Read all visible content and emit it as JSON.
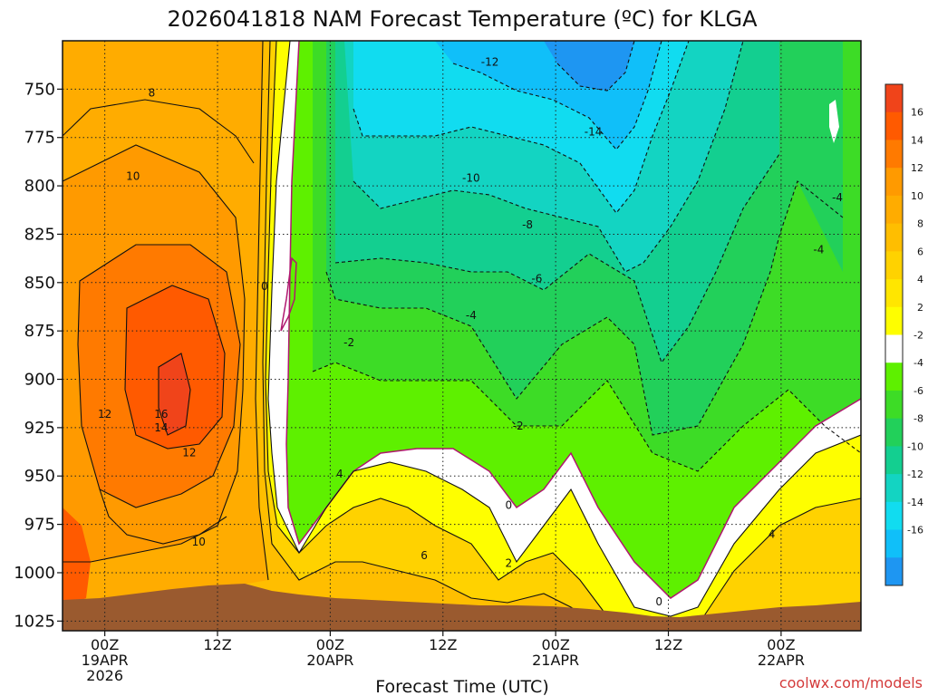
{
  "chart_data": {
    "type": "time-height contour",
    "title": "2026041818 NAM Forecast Temperature (ºC) for KLGA",
    "xlabel": "Forecast Time (UTC)",
    "ylabel": "",
    "y_axis": {
      "unit": "hPa",
      "ticks": [
        750,
        775,
        800,
        825,
        850,
        875,
        900,
        925,
        950,
        975,
        1000,
        1025
      ],
      "range": [
        725,
        1030
      ]
    },
    "x_axis": {
      "unit": "hours",
      "range": [
        -4.5,
        80.5
      ],
      "ticks": [
        {
          "hour": 0,
          "line1": "00Z",
          "line2": "19APR",
          "line3": "2026"
        },
        {
          "hour": 12,
          "line1": "12Z",
          "line2": "",
          "line3": ""
        },
        {
          "hour": 24,
          "line1": "00Z",
          "line2": "20APR",
          "line3": ""
        },
        {
          "hour": 36,
          "line1": "12Z",
          "line2": "",
          "line3": ""
        },
        {
          "hour": 48,
          "line1": "00Z",
          "line2": "21APR",
          "line3": ""
        },
        {
          "hour": 60,
          "line1": "12Z",
          "line2": "",
          "line3": ""
        },
        {
          "hour": 72,
          "line1": "00Z",
          "line2": "22APR",
          "line3": ""
        }
      ]
    },
    "colorbar": {
      "labels": [
        16,
        14,
        12,
        10,
        8,
        6,
        4,
        2,
        -2,
        -4,
        -6,
        -8,
        -10,
        -12,
        -14,
        -16
      ],
      "colors": [
        "#f0441a",
        "#ff5a00",
        "#ff7a00",
        "#ff9a00",
        "#ffac00",
        "#ffbe00",
        "#ffd200",
        "#ffe600",
        "#fefe00",
        "#ffffff",
        "#5ef000",
        "#3ddc26",
        "#22d05a",
        "#13cf90",
        "#13d4c2",
        "#11dcf0",
        "#10bff9",
        "#1e96f2"
      ]
    },
    "regions": [
      {
        "name": "warm-sector",
        "range_c": "2 to 16+",
        "hours": [
          -4.5,
          18
        ]
      },
      {
        "name": "warm-core",
        "range_c": "14 to 16+",
        "pressure_hpa": [
          870,
          930
        ],
        "hours": [
          6,
          8
        ]
      },
      {
        "name": "cold-air-aloft",
        "range_c": "-16 to -2",
        "hours": [
          18,
          80
        ]
      },
      {
        "name": "boundary-layer-warm",
        "range_c": "0 to 6",
        "pressure_hpa": [
          930,
          1015
        ],
        "hours": [
          20,
          80
        ]
      }
    ],
    "contour_labels": [
      {
        "text": "8",
        "hour": 5,
        "p": 752
      },
      {
        "text": "10",
        "hour": 3,
        "p": 795
      },
      {
        "text": "12",
        "hour": 0,
        "p": 918
      },
      {
        "text": "16",
        "hour": 6,
        "p": 918
      },
      {
        "text": "14",
        "hour": 6,
        "p": 925
      },
      {
        "text": "12",
        "hour": 9,
        "p": 938
      },
      {
        "text": "10",
        "hour": 10,
        "p": 984
      },
      {
        "text": "0",
        "hour": 17,
        "p": 852
      },
      {
        "text": "-2",
        "hour": 26,
        "p": 881
      },
      {
        "text": "-4",
        "hour": 39,
        "p": 867
      },
      {
        "text": "-6",
        "hour": 46,
        "p": 848
      },
      {
        "text": "-8",
        "hour": 45,
        "p": 820
      },
      {
        "text": "-10",
        "hour": 39,
        "p": 796
      },
      {
        "text": "-12",
        "hour": 41,
        "p": 736
      },
      {
        "text": "-14",
        "hour": 52,
        "p": 772
      },
      {
        "text": "-2",
        "hour": 44,
        "p": 924
      },
      {
        "text": "0",
        "hour": 43,
        "p": 965
      },
      {
        "text": "2",
        "hour": 43,
        "p": 995
      },
      {
        "text": "4",
        "hour": 25,
        "p": 949
      },
      {
        "text": "6",
        "hour": 34,
        "p": 991
      },
      {
        "text": "0",
        "hour": 59,
        "p": 1015
      },
      {
        "text": "4",
        "hour": 71,
        "p": 980
      },
      {
        "text": "-4",
        "hour": 78,
        "p": 806
      },
      {
        "text": "-4",
        "hour": 76,
        "p": 833
      }
    ]
  },
  "credit": "coolwx.com/models"
}
